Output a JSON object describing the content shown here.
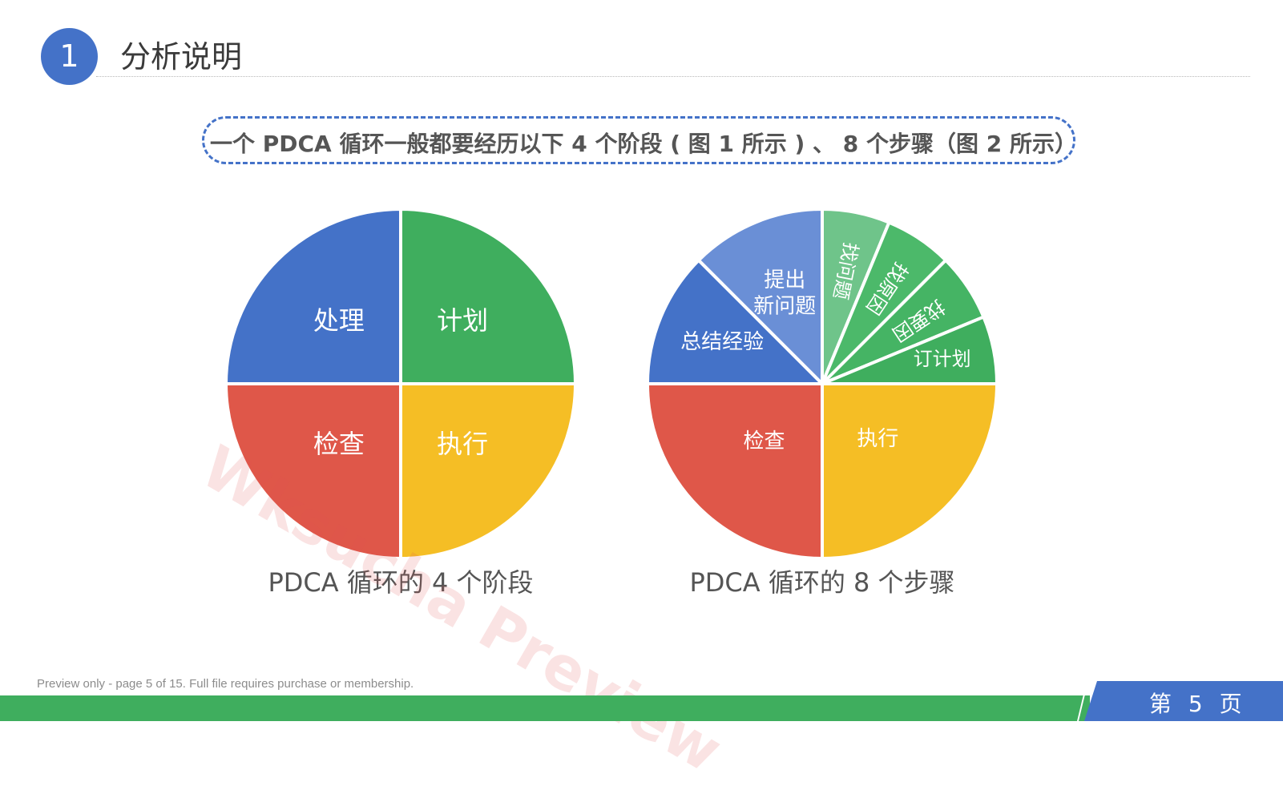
{
  "header": {
    "section_number": "1",
    "title": "分析说明"
  },
  "intro": {
    "text": "一个 PDCA 循环一般都要经历以下 4 个阶段 ( 图 1 所示 ) 、 8 个步骤（图 2 所示）"
  },
  "figures": [
    {
      "caption": "PDCA 循环的 4 个阶段",
      "slices": [
        {
          "label": "计划",
          "value": 25,
          "color": "#3fae5e"
        },
        {
          "label": "执行",
          "value": 25,
          "color": "#f5be25"
        },
        {
          "label": "检查",
          "value": 25,
          "color": "#df5749"
        },
        {
          "label": "处理",
          "value": 25,
          "color": "#4472c8"
        }
      ]
    },
    {
      "caption": "PDCA 循环的 8 个步骤",
      "slices": [
        {
          "label": "找问题",
          "value": 6.25,
          "color": "#6fc48a"
        },
        {
          "label": "找原因",
          "value": 6.25,
          "color": "#4cb96a"
        },
        {
          "label": "找要因",
          "value": 6.25,
          "color": "#45b464"
        },
        {
          "label": "订计划",
          "value": 6.25,
          "color": "#3fae5e"
        },
        {
          "label": "执行",
          "value": 25,
          "color": "#f5be25"
        },
        {
          "label": "检查",
          "value": 25,
          "color": "#df5749"
        },
        {
          "label": "总结经验",
          "value": 12.5,
          "color": "#4472c8"
        },
        {
          "label": "提出 新问题",
          "value": 12.5,
          "color": "#6a8fd6"
        }
      ]
    }
  ],
  "chart_data": [
    {
      "type": "pie",
      "title": "PDCA 循环的 4 个阶段",
      "categories": [
        "计划",
        "执行",
        "检查",
        "处理"
      ],
      "values": [
        25,
        25,
        25,
        25
      ]
    },
    {
      "type": "pie",
      "title": "PDCA 循环的 8 个步骤",
      "categories": [
        "找问题",
        "找原因",
        "找要因",
        "订计划",
        "执行",
        "检查",
        "总结经验",
        "提出新问题"
      ],
      "values": [
        6.25,
        6.25,
        6.25,
        6.25,
        25,
        25,
        12.5,
        12.5
      ]
    }
  ],
  "watermark": "Wksucha Preview",
  "footer": {
    "note": "Preview only - page 5 of 15. Full file requires purchase or membership.",
    "page_label": "第 5 页"
  }
}
